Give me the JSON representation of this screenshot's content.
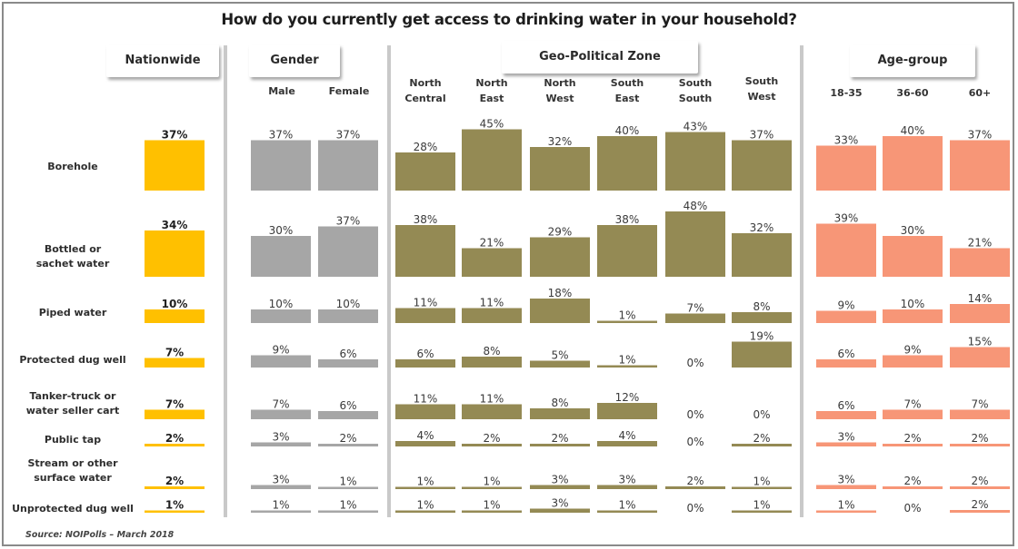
{
  "chart_data": {
    "type": "bar",
    "title": "How do you currently get access to drinking water in your household?",
    "source": "Source: NOIPolls – March 2018",
    "value_unit": "%",
    "categories": [
      "Borehole",
      "Bottled or sachet water",
      "Piped water",
      "Protected dug well",
      "Tanker-truck or water seller cart",
      "Public tap",
      "Stream or other surface water",
      "Unprotected dug well"
    ],
    "category_labels": [
      [
        "Borehole"
      ],
      [
        "Bottled or",
        "sachet water"
      ],
      [
        "Piped water"
      ],
      [
        "Protected dug well"
      ],
      [
        "Tanker-truck or",
        "water seller cart"
      ],
      [
        "Public tap"
      ],
      [
        "Stream or other",
        "surface water"
      ],
      [
        "Unprotected dug well"
      ]
    ],
    "groups": [
      {
        "name": "Nationwide",
        "color": "#FFC000",
        "header_color": "#FFC000",
        "series": [
          {
            "name": "Nationwide",
            "label_lines": [],
            "values": [
              37,
              34,
              10,
              7,
              7,
              2,
              2,
              1
            ]
          }
        ]
      },
      {
        "name": "Gender",
        "color": "#A6A6A6",
        "header_color": "#A6A6A6",
        "series": [
          {
            "name": "Male",
            "label_lines": [
              "Male"
            ],
            "values": [
              37,
              30,
              10,
              9,
              7,
              3,
              3,
              1
            ]
          },
          {
            "name": "Female",
            "label_lines": [
              "Female"
            ],
            "values": [
              37,
              37,
              10,
              6,
              6,
              2,
              1,
              1
            ]
          }
        ]
      },
      {
        "name": "Geo-Political Zone",
        "color": "#948A54",
        "header_color": "#A69B62",
        "series": [
          {
            "name": "North Central",
            "label_lines": [
              "North",
              "Central"
            ],
            "values": [
              28,
              38,
              11,
              6,
              11,
              4,
              1,
              1
            ]
          },
          {
            "name": "North East",
            "label_lines": [
              "North",
              "East"
            ],
            "values": [
              45,
              21,
              11,
              8,
              11,
              2,
              1,
              1
            ]
          },
          {
            "name": "North West",
            "label_lines": [
              "North",
              "West"
            ],
            "values": [
              32,
              29,
              18,
              5,
              8,
              2,
              3,
              3
            ]
          },
          {
            "name": "South East",
            "label_lines": [
              "South",
              "East"
            ],
            "values": [
              40,
              38,
              1,
              1,
              12,
              4,
              3,
              1
            ]
          },
          {
            "name": "South South",
            "label_lines": [
              "South",
              "South"
            ],
            "values": [
              43,
              48,
              7,
              0,
              0,
              0,
              2,
              0
            ]
          },
          {
            "name": "South West",
            "label_lines": [
              "South",
              "West"
            ],
            "values": [
              37,
              32,
              8,
              19,
              0,
              2,
              1,
              1
            ]
          }
        ]
      },
      {
        "name": "Age-group",
        "color": "#F79677",
        "header_color": "#F8A487",
        "series": [
          {
            "name": "18-35",
            "label_lines": [
              "18-35"
            ],
            "values": [
              33,
              39,
              9,
              6,
              6,
              3,
              3,
              1
            ]
          },
          {
            "name": "36-60",
            "label_lines": [
              "36-60"
            ],
            "values": [
              40,
              30,
              10,
              9,
              7,
              2,
              2,
              0
            ]
          },
          {
            "name": "60+",
            "label_lines": [
              "60+"
            ],
            "values": [
              37,
              21,
              14,
              15,
              7,
              2,
              2,
              2
            ]
          }
        ]
      }
    ],
    "ylim": [
      0,
      100
    ],
    "grid": false,
    "legend": "group headers at top"
  }
}
